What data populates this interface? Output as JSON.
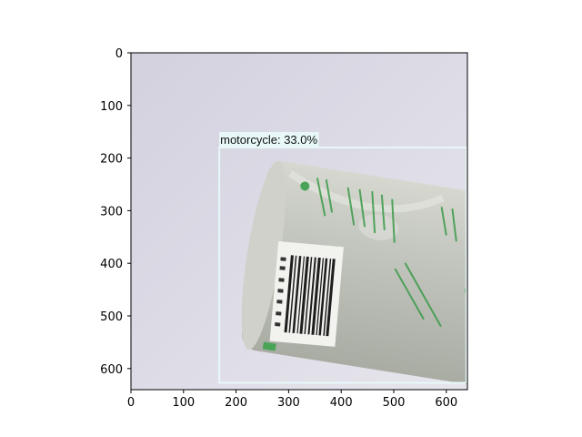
{
  "chart_data": {
    "type": "image",
    "xlim": [
      0,
      640
    ],
    "ylim": [
      640,
      0
    ],
    "x_ticks": [
      "0",
      "100",
      "200",
      "300",
      "400",
      "500",
      "600"
    ],
    "y_ticks": [
      "0",
      "100",
      "200",
      "300",
      "400",
      "500",
      "600"
    ]
  },
  "detection": {
    "label": "motorcycle: 33.0%",
    "box": {
      "x_min": 168,
      "y_min": 180,
      "x_max": 638,
      "y_max": 627
    },
    "color": "#e8f8f8"
  },
  "scene": {
    "background_color": "#dcdae4",
    "bottle_color": "#c2c4bc",
    "print_color": "#3a9a48"
  }
}
